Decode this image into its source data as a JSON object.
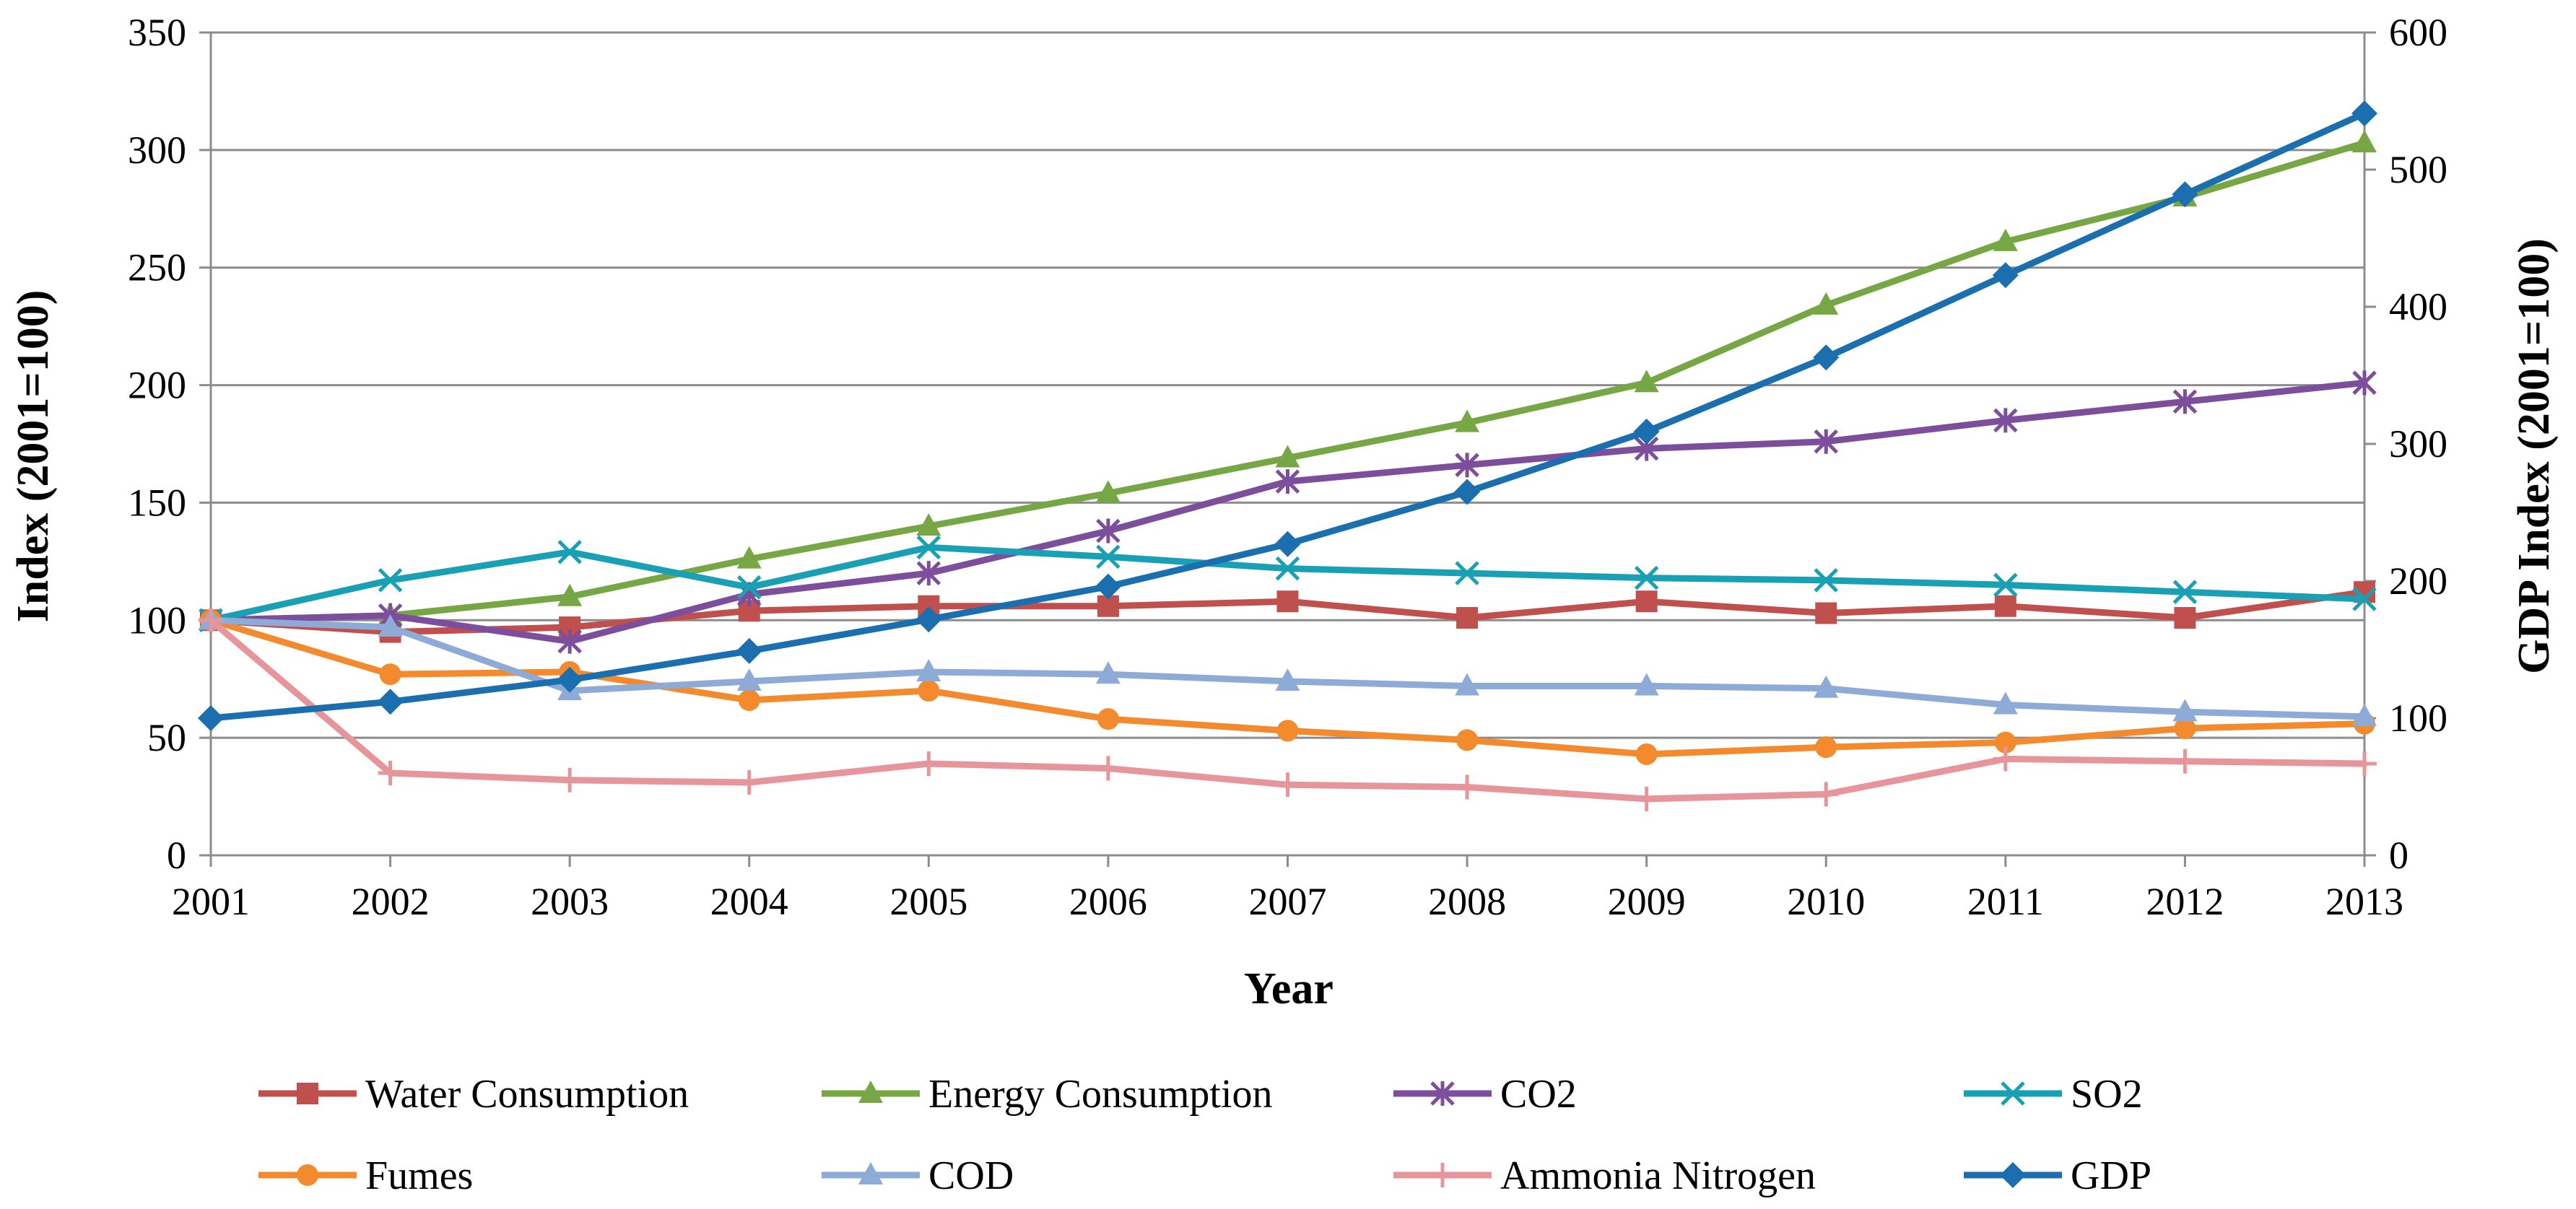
{
  "chart_data": {
    "type": "line",
    "title": "",
    "x": [
      "2001",
      "2002",
      "2003",
      "2004",
      "2005",
      "2006",
      "2007",
      "2008",
      "2009",
      "2010",
      "2011",
      "2012",
      "2013"
    ],
    "xlabel": "Year",
    "ylabel": "Index (2001=100)",
    "y2label": "GDP Index (2001=100)",
    "ylim": [
      0,
      350
    ],
    "y2lim": [
      0,
      600
    ],
    "yticks": [
      0,
      50,
      100,
      150,
      200,
      250,
      300,
      350
    ],
    "y2ticks": [
      0,
      100,
      200,
      300,
      400,
      500,
      600
    ],
    "grid": true,
    "legend_position": "bottom",
    "series": [
      {
        "name": "Water Consumption",
        "axis": "left",
        "color": "#C0504D",
        "marker": "square",
        "values": [
          100,
          95,
          97,
          104,
          106,
          106,
          108,
          101,
          108,
          103,
          106,
          101,
          112
        ]
      },
      {
        "name": "Energy Consumption",
        "axis": "left",
        "color": "#77A645",
        "marker": "triangle",
        "values": [
          100,
          102,
          110,
          126,
          140,
          154,
          169,
          184,
          201,
          234,
          261,
          280,
          303
        ]
      },
      {
        "name": "CO2",
        "axis": "left",
        "color": "#7D4E9B",
        "marker": "star",
        "values": [
          100,
          102,
          91,
          111,
          120,
          138,
          159,
          166,
          173,
          176,
          185,
          193,
          201
        ]
      },
      {
        "name": "SO2",
        "axis": "left",
        "color": "#1AA0B5",
        "marker": "x",
        "values": [
          100,
          117,
          129,
          114,
          131,
          127,
          122,
          120,
          118,
          117,
          115,
          112,
          109
        ]
      },
      {
        "name": "Fumes",
        "axis": "left",
        "color": "#F38B2E",
        "marker": "circle",
        "values": [
          100,
          77,
          78,
          66,
          70,
          58,
          53,
          49,
          43,
          46,
          48,
          54,
          56
        ]
      },
      {
        "name": "COD",
        "axis": "left",
        "color": "#8EAAD6",
        "marker": "triangle",
        "values": [
          100,
          97,
          70,
          74,
          78,
          77,
          74,
          72,
          72,
          71,
          64,
          61,
          59
        ]
      },
      {
        "name": "Ammonia Nitrogen",
        "axis": "left",
        "color": "#E6959A",
        "marker": "plus",
        "values": [
          100,
          35,
          32,
          31,
          39,
          37,
          30,
          29,
          24,
          26,
          41,
          40,
          39
        ]
      },
      {
        "name": "GDP",
        "axis": "right",
        "color": "#1C6FAE",
        "marker": "diamond",
        "values": [
          100,
          112,
          128,
          149,
          172,
          196,
          227,
          265,
          309,
          363,
          423,
          482,
          541
        ]
      }
    ]
  }
}
